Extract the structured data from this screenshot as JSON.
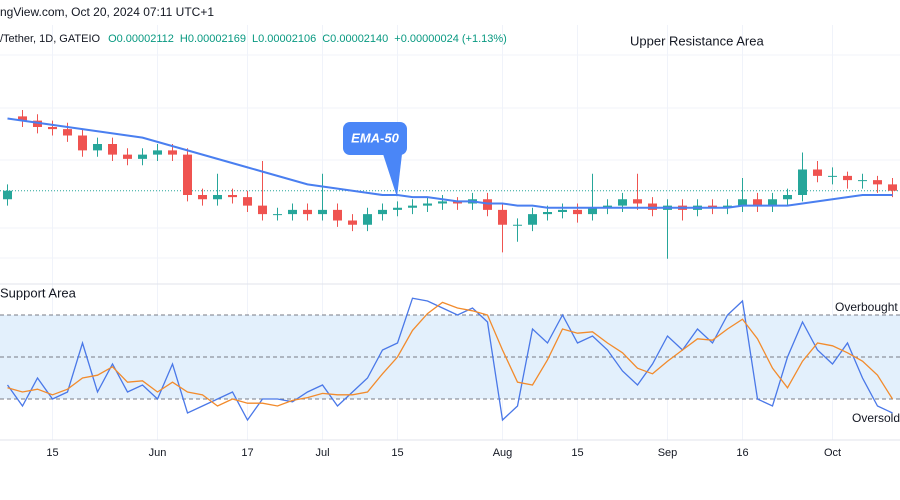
{
  "header": {
    "source": "ngView.com, Oct 20, 2024 07:11 UTC+1",
    "symbol": "/Tether, 1D, GATEIO",
    "open": {
      "value": 2.112e-05,
      "label": "O0.00002112"
    },
    "high": {
      "value": 2.169e-05,
      "label": "H0.00002169"
    },
    "low": {
      "value": 2.106e-05,
      "label": "L0.00002106"
    },
    "close": {
      "value": 2.14e-05,
      "label": "C0.00002140"
    },
    "change": "+0.00000024 (+1.13%)"
  },
  "chart_data": {
    "type": "candlestick",
    "resistance_label": "Upper Resistance Area",
    "support_label": "Support Area",
    "categories": [
      null,
      null,
      null,
      "15",
      null,
      null,
      null,
      null,
      null,
      null,
      "Jun",
      null,
      null,
      null,
      null,
      null,
      "17",
      null,
      null,
      null,
      null,
      "Jul",
      null,
      null,
      null,
      null,
      "15",
      null,
      null,
      null,
      null,
      null,
      null,
      "Aug",
      null,
      null,
      null,
      null,
      "15",
      null,
      null,
      null,
      null,
      null,
      "Sep",
      null,
      null,
      null,
      null,
      "16",
      null,
      null,
      null,
      null,
      null,
      "Oct",
      null,
      null,
      null,
      null
    ],
    "up_color": "#26a69a",
    "down_color": "#ef5350",
    "ylim": [
      1.72e-05,
      2.92e-05
    ],
    "open": [
      2.1e-05,
      2.49e-05,
      2.47e-05,
      2.44e-05,
      2.43e-05,
      2.4e-05,
      2.33e-05,
      2.36e-05,
      2.31e-05,
      2.29e-05,
      2.31e-05,
      2.33e-05,
      2.31e-05,
      2.12e-05,
      2.1e-05,
      2.12e-05,
      2.11e-05,
      2.07e-05,
      2.03e-05,
      2.03e-05,
      2.05e-05,
      2.03e-05,
      2.05e-05,
      2e-05,
      1.98e-05,
      2.03e-05,
      2.05e-05,
      2.06e-05,
      2.07e-05,
      2.08e-05,
      2.09e-05,
      2.08e-05,
      2.1e-05,
      2.05e-05,
      1.98e-05,
      1.98e-05,
      2.03e-05,
      2.04e-05,
      2.05e-05,
      2.03e-05,
      2.06e-05,
      2.07e-05,
      2.1e-05,
      2.08e-05,
      2.05e-05,
      2.07e-05,
      2.05e-05,
      2.07e-05,
      2.06e-05,
      2.07e-05,
      2.1e-05,
      2.07e-05,
      2.1e-05,
      2.12e-05,
      2.24e-05,
      2.21e-05,
      2.21e-05,
      2.19e-05,
      2.19e-05,
      2.17e-05
    ],
    "high": [
      2.17e-05,
      2.52e-05,
      2.5e-05,
      2.47e-05,
      2.46e-05,
      2.43e-05,
      2.39e-05,
      2.39e-05,
      2.34e-05,
      2.34e-05,
      2.36e-05,
      2.36e-05,
      2.34e-05,
      2.15e-05,
      2.22e-05,
      2.15e-05,
      2.14e-05,
      2.28e-05,
      2.06e-05,
      2.08e-05,
      2.08e-05,
      2.22e-05,
      2.08e-05,
      2.03e-05,
      2.06e-05,
      2.08e-05,
      2.09e-05,
      2.1e-05,
      2.11e-05,
      2.12e-05,
      2.11e-05,
      2.13e-05,
      2.13e-05,
      2.08e-05,
      2.01e-05,
      2.06e-05,
      2.07e-05,
      2.08e-05,
      2.08e-05,
      2.22e-05,
      2.1e-05,
      2.13e-05,
      2.22e-05,
      2.11e-05,
      2.1e-05,
      2.1e-05,
      2.1e-05,
      2.1e-05,
      2.1e-05,
      2.2e-05,
      2.13e-05,
      2.13e-05,
      2.15e-05,
      2.32e-05,
      2.28e-05,
      2.25e-05,
      2.23e-05,
      2.22e-05,
      2.21e-05,
      2.2e-05
    ],
    "low": [
      2.07e-05,
      2.44e-05,
      2.41e-05,
      2.4e-05,
      2.37e-05,
      2.3e-05,
      2.3e-05,
      2.28e-05,
      2.26e-05,
      2.26e-05,
      2.28e-05,
      2.28e-05,
      2.09e-05,
      2.07e-05,
      2.07e-05,
      2.08e-05,
      2.04e-05,
      2e-05,
      2e-05,
      2e-05,
      2e-05,
      2e-05,
      1.97e-05,
      1.95e-05,
      1.95e-05,
      2e-05,
      2.02e-05,
      2.03e-05,
      2.04e-05,
      2.05e-05,
      2.05e-05,
      2.05e-05,
      2.02e-05,
      1.85e-05,
      1.9e-05,
      1.95e-05,
      2e-05,
      2.01e-05,
      1.99e-05,
      2e-05,
      2.03e-05,
      2.04e-05,
      2.05e-05,
      2.02e-05,
      1.82e-05,
      2e-05,
      2.02e-05,
      2.03e-05,
      2.03e-05,
      2.04e-05,
      2.04e-05,
      2.04e-05,
      2.07e-05,
      2.09e-05,
      2.18e-05,
      2.17e-05,
      2.15e-05,
      2.15e-05,
      2.13e-05,
      2.11e-05
    ],
    "close": [
      2.14e-05,
      2.47e-05,
      2.44e-05,
      2.43e-05,
      2.4e-05,
      2.33e-05,
      2.36e-05,
      2.31e-05,
      2.29e-05,
      2.31e-05,
      2.33e-05,
      2.31e-05,
      2.12e-05,
      2.1e-05,
      2.12e-05,
      2.11e-05,
      2.07e-05,
      2.03e-05,
      2.03e-05,
      2.05e-05,
      2.03e-05,
      2.05e-05,
      2e-05,
      1.98e-05,
      2.03e-05,
      2.05e-05,
      2.06e-05,
      2.07e-05,
      2.08e-05,
      2.09e-05,
      2.08e-05,
      2.1e-05,
      2.05e-05,
      1.98e-05,
      1.98e-05,
      2.03e-05,
      2.04e-05,
      2.05e-05,
      2.03e-05,
      2.06e-05,
      2.07e-05,
      2.1e-05,
      2.08e-05,
      2.05e-05,
      2.07e-05,
      2.05e-05,
      2.07e-05,
      2.06e-05,
      2.07e-05,
      2.1e-05,
      2.07e-05,
      2.1e-05,
      2.12e-05,
      2.24e-05,
      2.21e-05,
      2.21e-05,
      2.19e-05,
      2.19e-05,
      2.17e-05,
      2.14e-05
    ],
    "ema": {
      "name": "EMA-50",
      "color": "#4a7ff0",
      "values": [
        2.48e-05,
        2.47e-05,
        2.46e-05,
        2.45e-05,
        2.44e-05,
        2.43e-05,
        2.42e-05,
        2.41e-05,
        2.4e-05,
        2.39e-05,
        2.37e-05,
        2.35e-05,
        2.33e-05,
        2.31e-05,
        2.29e-05,
        2.27e-05,
        2.25e-05,
        2.23e-05,
        2.21e-05,
        2.19e-05,
        2.17e-05,
        2.16e-05,
        2.15e-05,
        2.14e-05,
        2.13e-05,
        2.12e-05,
        2.12e-05,
        2.11e-05,
        2.11e-05,
        2.1e-05,
        2.09e-05,
        2.09e-05,
        2.08e-05,
        2.08e-05,
        2.07e-05,
        2.07e-05,
        2.06e-05,
        2.06e-05,
        2.06e-05,
        2.06e-05,
        2.06e-05,
        2.06e-05,
        2.06e-05,
        2.06e-05,
        2.06e-05,
        2.06e-05,
        2.06e-05,
        2.06e-05,
        2.06e-05,
        2.07e-05,
        2.07e-05,
        2.07e-05,
        2.07e-05,
        2.08e-05,
        2.09e-05,
        2.1e-05,
        2.11e-05,
        2.12e-05,
        2.12e-05,
        2.12e-05
      ]
    },
    "oscillator": {
      "ylim": [
        0,
        100
      ],
      "levels": [
        80,
        50,
        20
      ],
      "overbought_label": "Overbought",
      "oversold_label": "Oversold",
      "series": [
        {
          "color": "#4a78e8",
          "values": [
            30,
            15,
            35,
            20,
            25,
            60,
            25,
            45,
            25,
            30,
            20,
            45,
            10,
            15,
            20,
            25,
            5,
            20,
            20,
            18,
            25,
            30,
            15,
            25,
            35,
            55,
            60,
            92,
            90,
            85,
            80,
            85,
            75,
            5,
            15,
            70,
            60,
            80,
            60,
            65,
            55,
            40,
            30,
            45,
            65,
            55,
            70,
            60,
            80,
            90,
            20,
            15,
            50,
            75,
            55,
            45,
            60,
            35,
            15,
            10
          ]
        },
        {
          "color": "#f28b2c",
          "values": [
            28,
            25,
            27,
            23,
            27,
            35,
            37,
            43,
            32,
            33,
            25,
            32,
            25,
            23,
            15,
            20,
            17,
            17,
            15,
            19,
            21,
            24,
            23,
            23,
            25,
            38,
            50,
            69,
            81,
            89,
            85,
            83,
            80,
            55,
            32,
            30,
            48,
            70,
            67,
            68,
            60,
            53,
            42,
            38,
            47,
            55,
            63,
            62,
            70,
            77,
            63,
            42,
            28,
            47,
            60,
            58,
            53,
            47,
            37,
            20
          ]
        }
      ]
    }
  }
}
